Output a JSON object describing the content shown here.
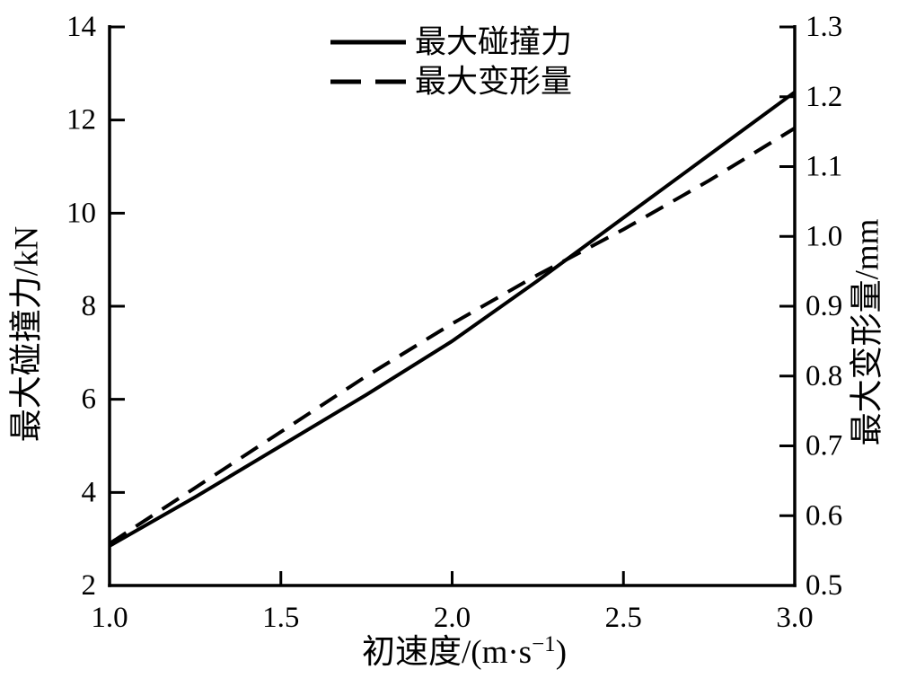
{
  "chart_data": {
    "type": "line",
    "title": "",
    "x": [
      1.0,
      1.25,
      1.5,
      1.75,
      2.0,
      2.25,
      2.5,
      2.75,
      3.0
    ],
    "series": [
      {
        "name": "最大碰撞力",
        "axis": "left",
        "style": "solid",
        "values": [
          2.85,
          3.9,
          5.0,
          6.1,
          7.25,
          8.55,
          9.9,
          11.25,
          12.6
        ]
      },
      {
        "name": "最大变形量",
        "axis": "right",
        "style": "dashed",
        "values": [
          0.56,
          0.64,
          0.72,
          0.8,
          0.875,
          0.945,
          1.01,
          1.08,
          1.155
        ]
      }
    ],
    "xlabel": {
      "prefix": "初速度/(m·s",
      "sup": "−1",
      "suffix": ")"
    },
    "ylabel_left": "最大碰撞力/kN",
    "ylabel_right": "最大变形量/mm",
    "xlim": [
      1.0,
      3.0
    ],
    "ylim_left": [
      2,
      14
    ],
    "ylim_right": [
      0.5,
      1.3
    ],
    "x_ticks": [
      1.0,
      1.5,
      2.0,
      2.5,
      3.0
    ],
    "x_tick_labels": [
      "1.0",
      "1.5",
      "2.0",
      "2.5",
      "3.0"
    ],
    "y_left_ticks": [
      2,
      4,
      6,
      8,
      10,
      12,
      14
    ],
    "y_left_tick_labels": [
      "2",
      "4",
      "6",
      "8",
      "10",
      "12",
      "14"
    ],
    "y_right_ticks": [
      0.5,
      0.6,
      0.7,
      0.8,
      0.9,
      1.0,
      1.1,
      1.2,
      1.3
    ],
    "y_right_tick_labels": [
      "0.5",
      "0.6",
      "0.7",
      "0.8",
      "0.9",
      "1.0",
      "1.1",
      "1.2",
      "1.3"
    ],
    "legend_position": "top-center-inside",
    "grid": false,
    "line_color": "#000000",
    "background": "#ffffff"
  }
}
